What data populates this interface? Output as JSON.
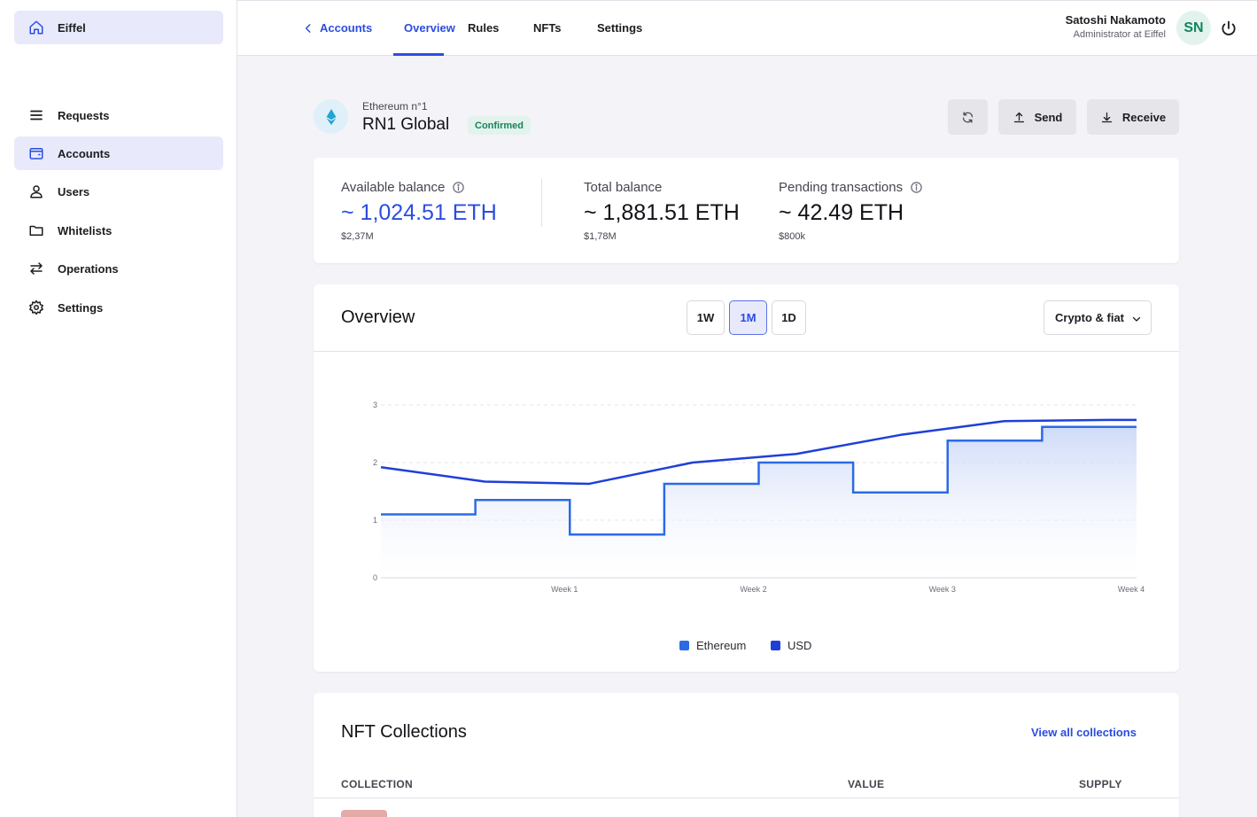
{
  "sidebar": {
    "home_label": "Eiffel",
    "items": [
      {
        "label": "Requests",
        "icon": "list-icon"
      },
      {
        "label": "Accounts",
        "icon": "wallet-icon"
      },
      {
        "label": "Users",
        "icon": "user-icon"
      },
      {
        "label": "Whitelists",
        "icon": "folder-icon"
      },
      {
        "label": "Operations",
        "icon": "arrows-icon"
      },
      {
        "label": "Settings",
        "icon": "gear-icon"
      }
    ]
  },
  "topbar": {
    "back_label": "Accounts",
    "tabs": [
      "Overview",
      "Rules",
      "NFTs",
      "Settings"
    ],
    "active_tab": "Overview",
    "user_name": "Satoshi Nakamoto",
    "user_role": "Administrator at Eiffel",
    "avatar_initials": "SN"
  },
  "account": {
    "subtitle": "Ethereum n°1",
    "name": "RN1 Global",
    "status": "Confirmed",
    "send_label": "Send",
    "receive_label": "Receive"
  },
  "balances": [
    {
      "label": "Available balance",
      "value": "~ 1,024.51 ETH",
      "fiat": "$2,37M"
    },
    {
      "label": "Total balance",
      "value": "~ 1,881.51 ETH",
      "fiat": "$1,78M"
    },
    {
      "label": "Pending transactions",
      "value": "~ 42.49 ETH",
      "fiat": "$800k"
    }
  ],
  "overview": {
    "title": "Overview",
    "periods": [
      "1W",
      "1M",
      "1D"
    ],
    "selected_period": "1M",
    "display_mode": "Crypto & fiat"
  },
  "chart_data": {
    "type": "line",
    "title": "",
    "xlabel": "",
    "ylabel": "",
    "x_ticks": [
      "Week 1",
      "Week 2",
      "Week 3",
      "Week 4"
    ],
    "y_ticks": [
      0,
      1,
      2,
      3
    ],
    "ylim": [
      0,
      3
    ],
    "grid": true,
    "legend_position": "bottom",
    "series": [
      {
        "name": "Ethereum",
        "color": "#2b6be6",
        "style": "step-area",
        "x": [
          0.0,
          0.5,
          1.0,
          1.5,
          2.0,
          2.5,
          3.0,
          3.5,
          4.0
        ],
        "values": [
          1.1,
          1.35,
          0.75,
          1.63,
          2.0,
          1.48,
          2.38,
          2.62,
          2.62
        ]
      },
      {
        "name": "USD",
        "color": "#1f3fd8",
        "style": "line",
        "x": [
          0.0,
          0.55,
          1.1,
          1.65,
          2.2,
          2.75,
          3.3,
          3.85,
          4.0
        ],
        "values": [
          1.92,
          1.67,
          1.63,
          2.0,
          2.15,
          2.48,
          2.72,
          2.74,
          2.74
        ]
      }
    ]
  },
  "nft": {
    "title": "NFT Collections",
    "link": "View all collections",
    "columns": [
      "COLLECTION",
      "VALUE",
      "SUPPLY"
    ]
  },
  "colors": {
    "accent": "#2b4de0",
    "success": "#16835d",
    "active_nav_bg": "#e8e9fb"
  }
}
